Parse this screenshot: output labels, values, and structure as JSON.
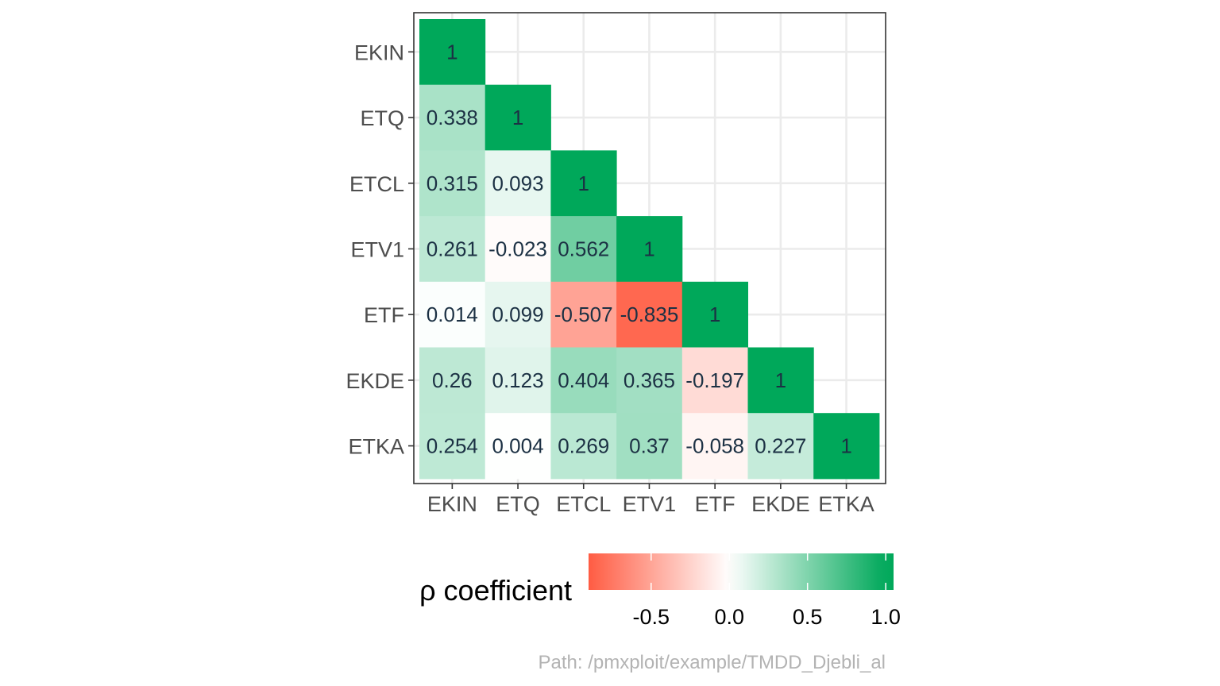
{
  "chart_data": {
    "type": "heatmap",
    "variables": [
      "EKIN",
      "ETQ",
      "ETCL",
      "ETV1",
      "ETF",
      "EKDE",
      "ETKA"
    ],
    "x_tick_labels": [
      "EKIN",
      "ETQ",
      "ETCL",
      "ETV1",
      "ETF",
      "EKDE",
      "ETKA"
    ],
    "y_tick_labels": [
      "EKIN",
      "ETQ",
      "ETCL",
      "ETV1",
      "ETF",
      "EKDE",
      "ETKA"
    ],
    "cells": [
      {
        "row": "EKIN",
        "col": "EKIN",
        "value": 1,
        "label": "1"
      },
      {
        "row": "ETQ",
        "col": "EKIN",
        "value": 0.338,
        "label": "0.338"
      },
      {
        "row": "ETQ",
        "col": "ETQ",
        "value": 1,
        "label": "1"
      },
      {
        "row": "ETCL",
        "col": "EKIN",
        "value": 0.315,
        "label": "0.315"
      },
      {
        "row": "ETCL",
        "col": "ETQ",
        "value": 0.093,
        "label": "0.093"
      },
      {
        "row": "ETCL",
        "col": "ETCL",
        "value": 1,
        "label": "1"
      },
      {
        "row": "ETV1",
        "col": "EKIN",
        "value": 0.261,
        "label": "0.261"
      },
      {
        "row": "ETV1",
        "col": "ETQ",
        "value": -0.023,
        "label": "-0.023"
      },
      {
        "row": "ETV1",
        "col": "ETCL",
        "value": 0.562,
        "label": "0.562"
      },
      {
        "row": "ETV1",
        "col": "ETV1",
        "value": 1,
        "label": "1"
      },
      {
        "row": "ETF",
        "col": "EKIN",
        "value": 0.014,
        "label": "0.014"
      },
      {
        "row": "ETF",
        "col": "ETQ",
        "value": 0.099,
        "label": "0.099"
      },
      {
        "row": "ETF",
        "col": "ETCL",
        "value": -0.507,
        "label": "-0.507"
      },
      {
        "row": "ETF",
        "col": "ETV1",
        "value": -0.835,
        "label": "-0.835"
      },
      {
        "row": "ETF",
        "col": "ETF",
        "value": 1,
        "label": "1"
      },
      {
        "row": "EKDE",
        "col": "EKIN",
        "value": 0.26,
        "label": "0.26"
      },
      {
        "row": "EKDE",
        "col": "ETQ",
        "value": 0.123,
        "label": "0.123"
      },
      {
        "row": "EKDE",
        "col": "ETCL",
        "value": 0.404,
        "label": "0.404"
      },
      {
        "row": "EKDE",
        "col": "ETV1",
        "value": 0.365,
        "label": "0.365"
      },
      {
        "row": "EKDE",
        "col": "ETF",
        "value": -0.197,
        "label": "-0.197"
      },
      {
        "row": "EKDE",
        "col": "EKDE",
        "value": 1,
        "label": "1"
      },
      {
        "row": "ETKA",
        "col": "EKIN",
        "value": 0.254,
        "label": "0.254"
      },
      {
        "row": "ETKA",
        "col": "ETQ",
        "value": 0.004,
        "label": "0.004"
      },
      {
        "row": "ETKA",
        "col": "ETCL",
        "value": 0.269,
        "label": "0.269"
      },
      {
        "row": "ETKA",
        "col": "ETV1",
        "value": 0.37,
        "label": "0.37"
      },
      {
        "row": "ETKA",
        "col": "ETF",
        "value": -0.058,
        "label": "-0.058"
      },
      {
        "row": "ETKA",
        "col": "EKDE",
        "value": 0.227,
        "label": "0.227"
      },
      {
        "row": "ETKA",
        "col": "ETKA",
        "value": 1,
        "label": "1"
      }
    ],
    "legend": {
      "title": "ρ coefficient",
      "position": "bottom",
      "range": [
        -0.9,
        1.05
      ],
      "ticks": [
        -0.5,
        0.0,
        0.5,
        1.0
      ],
      "tick_labels": [
        "-0.5",
        "0.0",
        "0.5",
        "1.0"
      ]
    },
    "colors": {
      "low": "#ff4a2e",
      "mid": "#ffffff",
      "high": "#00a85a"
    },
    "grid": true
  },
  "caption": "Path: /pmxploit/example/TMDD_Djebli_al"
}
